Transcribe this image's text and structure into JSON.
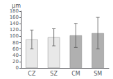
{
  "chart_data": {
    "type": "bar",
    "categories": [
      "CZ",
      "SZ",
      "CM",
      "SM"
    ],
    "values": [
      90,
      97,
      103,
      110
    ],
    "errors": [
      30,
      27,
      38,
      50
    ],
    "colors": [
      "#e8e8e8",
      "#e8e8e8",
      "#b0b0b0",
      "#b0b0b0"
    ],
    "ylabel": "μm",
    "ylim": [
      0,
      180
    ],
    "yticks": [
      0,
      20,
      40,
      60,
      80,
      100,
      120,
      140,
      160,
      180
    ],
    "grid": false
  }
}
